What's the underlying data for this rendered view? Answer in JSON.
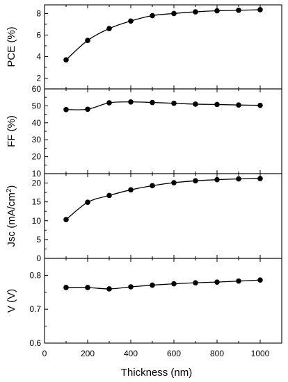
{
  "chart_data": [
    {
      "type": "line",
      "ylabel": "PCE (%)",
      "ylabel_parts": [
        {
          "text": "PCE (%)"
        }
      ],
      "ylim": [
        1,
        8.8
      ],
      "yticks": [
        2,
        4,
        6,
        8
      ],
      "yminor": [
        1,
        3,
        5,
        7
      ],
      "x": [
        100,
        200,
        300,
        400,
        500,
        600,
        700,
        800,
        900,
        1000
      ],
      "y": [
        3.7,
        5.5,
        6.6,
        7.3,
        7.8,
        8.0,
        8.15,
        8.25,
        8.3,
        8.35
      ]
    },
    {
      "type": "line",
      "ylabel": "FF (%)",
      "ylabel_parts": [
        {
          "text": "FF (%)"
        }
      ],
      "ylim": [
        10,
        60
      ],
      "yticks": [
        10,
        20,
        30,
        40,
        50,
        60
      ],
      "yminor": [
        15,
        25,
        35,
        45,
        55
      ],
      "x": [
        100,
        200,
        300,
        400,
        500,
        600,
        700,
        800,
        900,
        1000
      ],
      "y": [
        47.8,
        48.0,
        51.8,
        52.3,
        52.0,
        51.5,
        51.0,
        50.8,
        50.5,
        50.3
      ]
    },
    {
      "type": "line",
      "ylabel": "Jsc (mA/cm2)",
      "ylabel_parts": [
        {
          "text": "Jsc (mA/cm"
        },
        {
          "text": "2",
          "sup": true
        },
        {
          "text": ")"
        }
      ],
      "ylim": [
        0,
        22.5
      ],
      "yticks": [
        0,
        5,
        10,
        15,
        20
      ],
      "yminor": [
        2.5,
        7.5,
        12.5,
        17.5
      ],
      "x": [
        100,
        200,
        300,
        400,
        500,
        600,
        700,
        800,
        900,
        1000
      ],
      "y": [
        10.3,
        14.9,
        16.7,
        18.2,
        19.3,
        20.1,
        20.6,
        20.9,
        21.1,
        21.2
      ]
    },
    {
      "type": "line",
      "ylabel": "V (V)",
      "ylabel_parts": [
        {
          "text": "V (V)"
        }
      ],
      "ylim": [
        0.6,
        0.85
      ],
      "yticks": [
        0.6,
        0.7,
        0.8
      ],
      "yminor": [
        0.65,
        0.75
      ],
      "x": [
        100,
        200,
        300,
        400,
        500,
        600,
        700,
        800,
        900,
        1000
      ],
      "y": [
        0.764,
        0.764,
        0.76,
        0.766,
        0.771,
        0.775,
        0.778,
        0.78,
        0.783,
        0.786
      ]
    }
  ],
  "x_axis": {
    "xlabel": "Thickness  (nm)",
    "xlim": [
      0,
      1100
    ],
    "xticks": [
      0,
      200,
      400,
      600,
      800,
      1000
    ],
    "xminor": [
      100,
      300,
      500,
      700,
      900
    ]
  },
  "style": {
    "line_color": "#000000",
    "marker_color": "#000000",
    "marker": "filled-circle"
  }
}
